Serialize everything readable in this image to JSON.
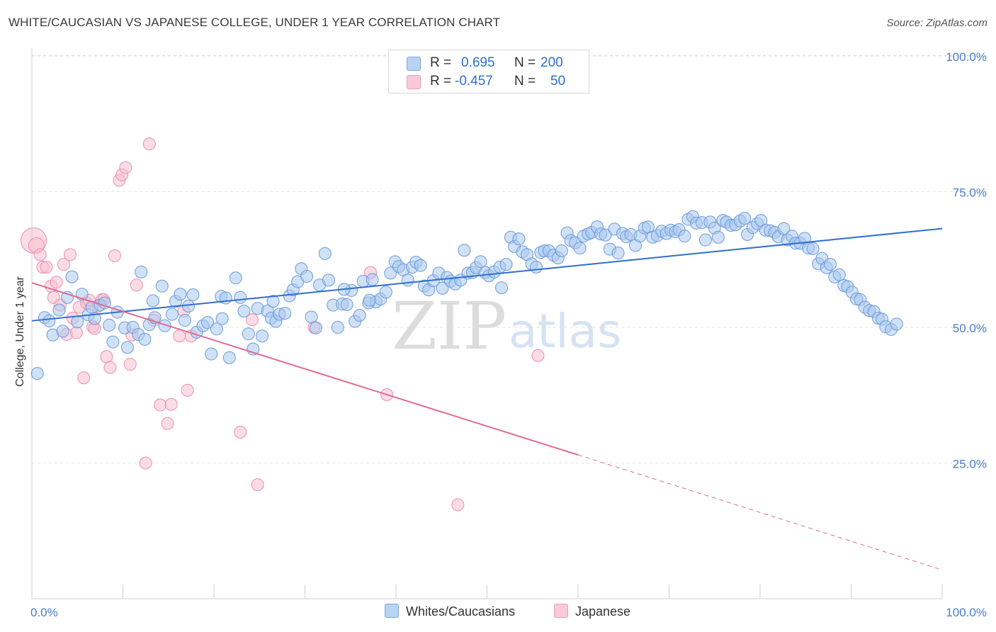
{
  "header": {
    "title": "WHITE/CAUCASIAN VS JAPANESE COLLEGE, UNDER 1 YEAR CORRELATION CHART",
    "source": "Source: ZipAtlas.com"
  },
  "legend": {
    "rows": [
      {
        "r_label": "R =",
        "r_value": "0.695",
        "n_label": "N =",
        "n_value": "200"
      },
      {
        "r_label": "R =",
        "r_value": "-0.457",
        "n_label": "N =",
        "n_value": "50"
      }
    ]
  },
  "bottom_legend": {
    "whites": "Whites/Caucasians",
    "japanese": "Japanese"
  },
  "watermark": {
    "zip": "ZIP",
    "atlas": "atlas"
  },
  "colors": {
    "blue_fill": "#a9c8ee",
    "blue_stroke": "#6b9bd9",
    "blue_line": "#2f6fcf",
    "pink_fill": "#f6bfd0",
    "pink_stroke": "#ec8fae",
    "pink_line": "#e06a94",
    "tick_label": "#4a7cc9"
  },
  "chart_data": {
    "type": "scatter",
    "title": "WHITE/CAUCASIAN VS JAPANESE COLLEGE, UNDER 1 YEAR CORRELATION CHART",
    "xlabel": "",
    "ylabel": "College, Under 1 year",
    "xlim": [
      0,
      100
    ],
    "ylim": [
      0,
      105
    ],
    "x_tick_labels": [
      "0.0%",
      "100.0%"
    ],
    "y_ticks": [
      25,
      50,
      75,
      100
    ],
    "y_tick_labels": [
      "25.0%",
      "50.0%",
      "75.0%",
      "100.0%"
    ],
    "grid": true,
    "legend_position": "top-center",
    "series": [
      {
        "name": "Whites/Caucasians",
        "color": "#6b9bd9",
        "trend": {
          "x0": 0,
          "y0": 51.2,
          "x1": 100,
          "y1": 68.2
        },
        "points": [
          [
            0.6,
            41.5
          ],
          [
            1.4,
            51.8
          ],
          [
            1.9,
            51.2
          ],
          [
            2.3,
            48.6
          ],
          [
            3.0,
            53.2
          ],
          [
            3.4,
            49.3
          ],
          [
            3.9,
            55.5
          ],
          [
            4.4,
            59.3
          ],
          [
            5.0,
            51.0
          ],
          [
            5.5,
            56.1
          ],
          [
            6.2,
            52.3
          ],
          [
            6.6,
            53.7
          ],
          [
            6.9,
            51.6
          ],
          [
            7.5,
            54.1
          ],
          [
            8.0,
            54.5
          ],
          [
            8.5,
            50.4
          ],
          [
            8.9,
            47.3
          ],
          [
            9.4,
            52.8
          ],
          [
            10.2,
            49.9
          ],
          [
            10.5,
            46.3
          ],
          [
            11.1,
            50.0
          ],
          [
            11.7,
            48.7
          ],
          [
            12.0,
            60.2
          ],
          [
            12.4,
            47.8
          ],
          [
            12.9,
            50.5
          ],
          [
            13.3,
            54.9
          ],
          [
            14.3,
            57.6
          ],
          [
            14.6,
            50.3
          ],
          [
            15.4,
            52.4
          ],
          [
            15.8,
            54.8
          ],
          [
            16.3,
            56.1
          ],
          [
            16.8,
            51.3
          ],
          [
            17.2,
            53.9
          ],
          [
            17.7,
            56.0
          ],
          [
            18.1,
            49.1
          ],
          [
            18.8,
            50.3
          ],
          [
            19.3,
            50.9
          ],
          [
            19.7,
            45.1
          ],
          [
            20.3,
            49.7
          ],
          [
            20.8,
            55.7
          ],
          [
            21.3,
            55.4
          ],
          [
            21.7,
            44.4
          ],
          [
            22.4,
            59.1
          ],
          [
            22.9,
            55.5
          ],
          [
            23.3,
            53.0
          ],
          [
            23.8,
            48.8
          ],
          [
            24.3,
            46.0
          ],
          [
            24.8,
            53.5
          ],
          [
            25.3,
            48.4
          ],
          [
            25.9,
            53.0
          ],
          [
            26.3,
            51.7
          ],
          [
            26.8,
            51.1
          ],
          [
            27.2,
            52.4
          ],
          [
            27.8,
            52.6
          ],
          [
            28.3,
            55.8
          ],
          [
            28.7,
            56.9
          ],
          [
            29.2,
            58.4
          ],
          [
            29.6,
            60.8
          ],
          [
            30.2,
            59.4
          ],
          [
            30.7,
            51.9
          ],
          [
            31.2,
            49.9
          ],
          [
            31.6,
            57.8
          ],
          [
            32.2,
            63.6
          ],
          [
            32.6,
            58.7
          ],
          [
            33.1,
            54.1
          ],
          [
            33.6,
            50.0
          ],
          [
            34.1,
            54.3
          ],
          [
            34.6,
            54.2
          ],
          [
            35.1,
            56.8
          ],
          [
            35.5,
            51.1
          ],
          [
            36.0,
            52.2
          ],
          [
            36.4,
            58.5
          ],
          [
            37.0,
            54.5
          ],
          [
            37.4,
            58.8
          ],
          [
            37.8,
            54.7
          ],
          [
            38.3,
            55.2
          ],
          [
            38.9,
            56.5
          ],
          [
            39.4,
            60.0
          ],
          [
            39.9,
            62.1
          ],
          [
            40.3,
            61.2
          ],
          [
            40.8,
            60.6
          ],
          [
            41.3,
            58.7
          ],
          [
            41.8,
            61.1
          ],
          [
            42.2,
            62.0
          ],
          [
            42.7,
            61.4
          ],
          [
            43.1,
            57.6
          ],
          [
            43.6,
            56.9
          ],
          [
            44.1,
            58.6
          ],
          [
            44.7,
            60.0
          ],
          [
            45.1,
            57.2
          ],
          [
            45.6,
            59.2
          ],
          [
            46.0,
            58.5
          ],
          [
            46.5,
            58.0
          ],
          [
            47.1,
            58.7
          ],
          [
            47.5,
            64.2
          ],
          [
            47.9,
            60.0
          ],
          [
            48.4,
            60.1
          ],
          [
            48.8,
            61.0
          ],
          [
            49.3,
            62.1
          ],
          [
            49.8,
            60.1
          ],
          [
            50.2,
            59.5
          ],
          [
            50.8,
            60.2
          ],
          [
            51.4,
            61.1
          ],
          [
            51.6,
            57.3
          ],
          [
            52.1,
            61.6
          ],
          [
            52.6,
            66.6
          ],
          [
            53.0,
            64.9
          ],
          [
            53.5,
            66.3
          ],
          [
            53.9,
            63.9
          ],
          [
            54.4,
            63.4
          ],
          [
            54.9,
            61.7
          ],
          [
            55.4,
            61.1
          ],
          [
            55.9,
            63.8
          ],
          [
            56.3,
            64.1
          ],
          [
            56.8,
            64.1
          ],
          [
            57.3,
            63.3
          ],
          [
            57.8,
            62.8
          ],
          [
            58.2,
            64.1
          ],
          [
            58.8,
            67.4
          ],
          [
            59.2,
            66.0
          ],
          [
            59.7,
            65.6
          ],
          [
            60.2,
            64.6
          ],
          [
            60.6,
            66.8
          ],
          [
            61.1,
            67.2
          ],
          [
            61.5,
            67.5
          ],
          [
            62.1,
            68.5
          ],
          [
            62.5,
            67.2
          ],
          [
            63.0,
            67.0
          ],
          [
            63.5,
            64.4
          ],
          [
            64.0,
            68.1
          ],
          [
            64.4,
            63.7
          ],
          [
            64.9,
            67.3
          ],
          [
            65.3,
            66.7
          ],
          [
            65.8,
            67.1
          ],
          [
            66.3,
            65.1
          ],
          [
            66.8,
            66.8
          ],
          [
            67.3,
            68.3
          ],
          [
            67.7,
            68.5
          ],
          [
            68.2,
            66.6
          ],
          [
            68.7,
            66.9
          ],
          [
            69.2,
            67.7
          ],
          [
            69.7,
            67.3
          ],
          [
            70.2,
            67.9
          ],
          [
            70.7,
            67.6
          ],
          [
            71.1,
            68.0
          ],
          [
            71.7,
            66.8
          ],
          [
            72.1,
            69.9
          ],
          [
            72.6,
            70.4
          ],
          [
            73.0,
            69.2
          ],
          [
            73.6,
            69.3
          ],
          [
            74.0,
            66.1
          ],
          [
            74.5,
            69.4
          ],
          [
            75.0,
            68.3
          ],
          [
            75.4,
            66.6
          ],
          [
            75.9,
            69.7
          ],
          [
            76.3,
            69.4
          ],
          [
            76.8,
            68.8
          ],
          [
            77.3,
            68.9
          ],
          [
            77.8,
            69.6
          ],
          [
            78.3,
            70.1
          ],
          [
            78.6,
            67.1
          ],
          [
            79.2,
            68.4
          ],
          [
            79.7,
            69.1
          ],
          [
            80.1,
            69.7
          ],
          [
            80.6,
            67.9
          ],
          [
            81.1,
            67.8
          ],
          [
            81.6,
            67.5
          ],
          [
            82.0,
            66.7
          ],
          [
            82.6,
            68.2
          ],
          [
            83.0,
            66.1
          ],
          [
            83.5,
            66.8
          ],
          [
            83.9,
            65.5
          ],
          [
            84.4,
            65.5
          ],
          [
            84.9,
            66.4
          ],
          [
            85.3,
            64.6
          ],
          [
            85.8,
            64.5
          ],
          [
            86.4,
            61.7
          ],
          [
            86.8,
            62.7
          ],
          [
            87.3,
            61.0
          ],
          [
            87.7,
            61.6
          ],
          [
            88.2,
            59.3
          ],
          [
            88.7,
            59.7
          ],
          [
            89.2,
            57.7
          ],
          [
            89.6,
            57.5
          ],
          [
            90.1,
            56.5
          ],
          [
            90.6,
            55.2
          ],
          [
            91.0,
            55.1
          ],
          [
            91.5,
            53.7
          ],
          [
            92.0,
            53.1
          ],
          [
            92.5,
            52.9
          ],
          [
            93.0,
            51.7
          ],
          [
            93.4,
            51.5
          ],
          [
            93.8,
            50.1
          ],
          [
            94.4,
            49.6
          ],
          [
            95.0,
            50.6
          ],
          [
            13.5,
            51.8
          ],
          [
            20.9,
            51.6
          ],
          [
            26.5,
            54.8
          ],
          [
            34.3,
            57.0
          ],
          [
            37.1,
            55.0
          ]
        ]
      },
      {
        "name": "Japanese",
        "color": "#ec8fae",
        "trend": {
          "x0": 0,
          "y0": 58.2,
          "x1": 60,
          "y1": 26.5,
          "dashed_to": {
            "x": 100,
            "y": 5.3
          }
        },
        "points": [
          [
            0.2,
            66.0
          ],
          [
            0.5,
            65.1
          ],
          [
            0.9,
            63.4
          ],
          [
            1.2,
            61.1
          ],
          [
            1.6,
            61.1
          ],
          [
            2.1,
            57.6
          ],
          [
            2.4,
            55.5
          ],
          [
            2.7,
            58.3
          ],
          [
            3.1,
            54.1
          ],
          [
            3.5,
            61.6
          ],
          [
            3.8,
            48.7
          ],
          [
            4.2,
            63.4
          ],
          [
            4.5,
            51.7
          ],
          [
            4.9,
            49.0
          ],
          [
            5.2,
            53.7
          ],
          [
            5.7,
            40.7
          ],
          [
            6.0,
            54.5
          ],
          [
            6.3,
            55.0
          ],
          [
            6.7,
            50.1
          ],
          [
            6.9,
            49.8
          ],
          [
            7.3,
            53.9
          ],
          [
            7.7,
            55.1
          ],
          [
            7.9,
            55.1
          ],
          [
            8.2,
            44.6
          ],
          [
            8.6,
            42.6
          ],
          [
            9.1,
            63.2
          ],
          [
            9.6,
            77.1
          ],
          [
            9.9,
            78.1
          ],
          [
            10.3,
            79.4
          ],
          [
            10.8,
            43.2
          ],
          [
            11.0,
            48.6
          ],
          [
            11.5,
            57.8
          ],
          [
            12.5,
            25.0
          ],
          [
            12.9,
            83.8
          ],
          [
            14.1,
            35.7
          ],
          [
            14.9,
            32.3
          ],
          [
            15.3,
            35.8
          ],
          [
            16.2,
            48.4
          ],
          [
            17.1,
            38.4
          ],
          [
            17.5,
            48.4
          ],
          [
            22.9,
            30.7
          ],
          [
            24.2,
            51.4
          ],
          [
            24.8,
            21.0
          ],
          [
            31.0,
            50.0
          ],
          [
            37.2,
            60.1
          ],
          [
            39.0,
            37.6
          ],
          [
            46.8,
            17.3
          ],
          [
            55.6,
            44.8
          ],
          [
            13.4,
            51.3
          ],
          [
            16.7,
            53.0
          ]
        ]
      }
    ]
  }
}
